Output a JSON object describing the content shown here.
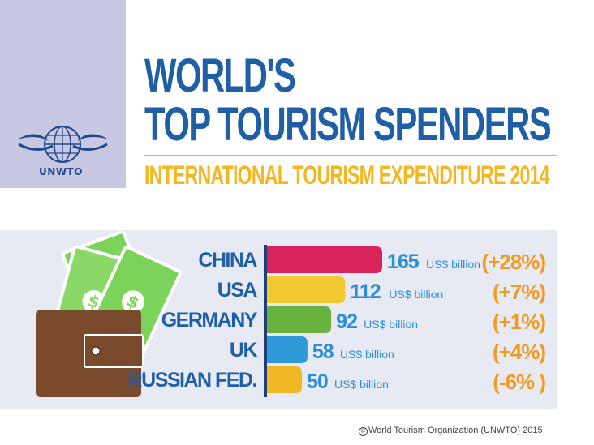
{
  "logo": {
    "org": "UNWTO",
    "icon": "globe-logo-icon",
    "color": "#1f4a8d"
  },
  "header": {
    "title_line1": "WORLD'S",
    "title_line2": "TOP TOURISM SPENDERS",
    "subtitle": "INTERNATIONAL TOURISM EXPENDITURE 2014",
    "title_color": "#1f5fa6",
    "subtitle_color": "#f4b71f"
  },
  "illustration": {
    "icon": "wallet-with-money-icon"
  },
  "chart_data": {
    "type": "bar",
    "orientation": "horizontal",
    "categories": [
      "CHINA",
      "USA",
      "GERMANY",
      "UK",
      "RUSSIAN FED."
    ],
    "values": [
      165,
      112,
      92,
      58,
      50
    ],
    "value_unit": "US$ billion",
    "changes": [
      "(+28%)",
      "(+7%)",
      "(+1%)",
      "(+4%)",
      "(-6% )"
    ],
    "bar_colors": [
      "#d8245a",
      "#f2c930",
      "#6ab23e",
      "#2f9ad8",
      "#f0b923"
    ],
    "xlim": [
      0,
      165
    ],
    "grid": false,
    "legend": "none"
  },
  "footer": {
    "symbol": "©",
    "copyright": "World Tourism Organization (UNWTO) 2015"
  }
}
